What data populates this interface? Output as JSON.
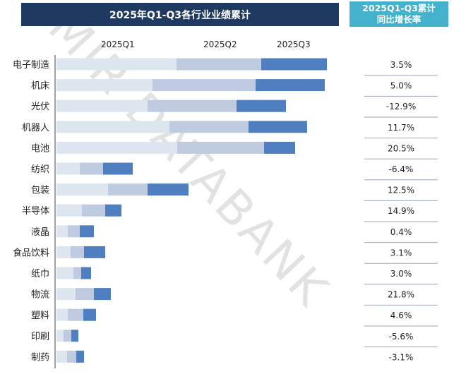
{
  "header": {
    "title": "2025年Q1-Q3各行业业绩累计",
    "growth_title_line1": "2025Q1-Q3累计",
    "growth_title_line2": "同比增长率"
  },
  "watermark": "MIR DATABANK",
  "chart_data": {
    "type": "bar",
    "orientation": "horizontal",
    "stacked": true,
    "title": "2025年Q1-Q3各行业业绩累计",
    "categories": [
      "电子制造",
      "机床",
      "光伏",
      "机器人",
      "电池",
      "纺织",
      "包装",
      "半导体",
      "液晶",
      "食品饮料",
      "纸巾",
      "物流",
      "塑料",
      "印刷",
      "制药"
    ],
    "series": [
      {
        "name": "2025Q1",
        "color": "#dde5ef",
        "values": [
          170,
          136,
          129,
          160,
          171,
          33,
          73,
          36,
          16,
          20,
          24,
          27,
          16,
          10,
          15
        ]
      },
      {
        "name": "2025Q2",
        "color": "#bfcbe0",
        "values": [
          120,
          146,
          126,
          112,
          123,
          33,
          56,
          33,
          17,
          19,
          11,
          26,
          22,
          11,
          13
        ]
      },
      {
        "name": "2025Q3",
        "color": "#4f7fc0",
        "values": [
          93,
          98,
          70,
          83,
          44,
          42,
          58,
          23,
          20,
          30,
          14,
          24,
          18,
          10,
          11
        ]
      }
    ],
    "growth_rate": [
      "3.5%",
      "5.0%",
      "-12.9%",
      "11.7%",
      "20.5%",
      "-6.4%",
      "12.5%",
      "14.9%",
      "0.4%",
      "3.1%",
      "3.0%",
      "21.8%",
      "4.6%",
      "-5.6%",
      "-3.1%"
    ],
    "axis_values_shown": false,
    "grid": false,
    "legend": "top"
  }
}
